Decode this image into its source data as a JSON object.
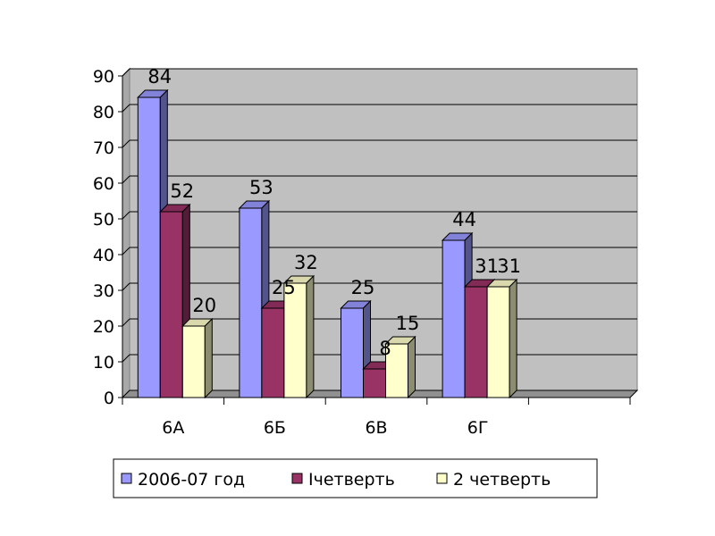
{
  "chart_data": {
    "type": "bar",
    "categories": [
      "6А",
      "6Б",
      "6В",
      "6Г"
    ],
    "series": [
      {
        "name": "2006-07 год",
        "values": [
          84,
          53,
          25,
          44
        ],
        "color": "#9999ff"
      },
      {
        "name": "Iчетверть",
        "values": [
          52,
          25,
          8,
          31
        ],
        "color": "#993366"
      },
      {
        "name": "2 четверть",
        "values": [
          20,
          32,
          15,
          31
        ],
        "color": "#ffffcc"
      }
    ],
    "ylim": [
      0,
      90
    ],
    "yticks": [
      0,
      10,
      20,
      30,
      40,
      50,
      60,
      70,
      80,
      90
    ],
    "grid": true,
    "legend_position": "bottom",
    "plot_background": "#c0c0c0",
    "three_d": true,
    "empty_category_slots": 1
  }
}
